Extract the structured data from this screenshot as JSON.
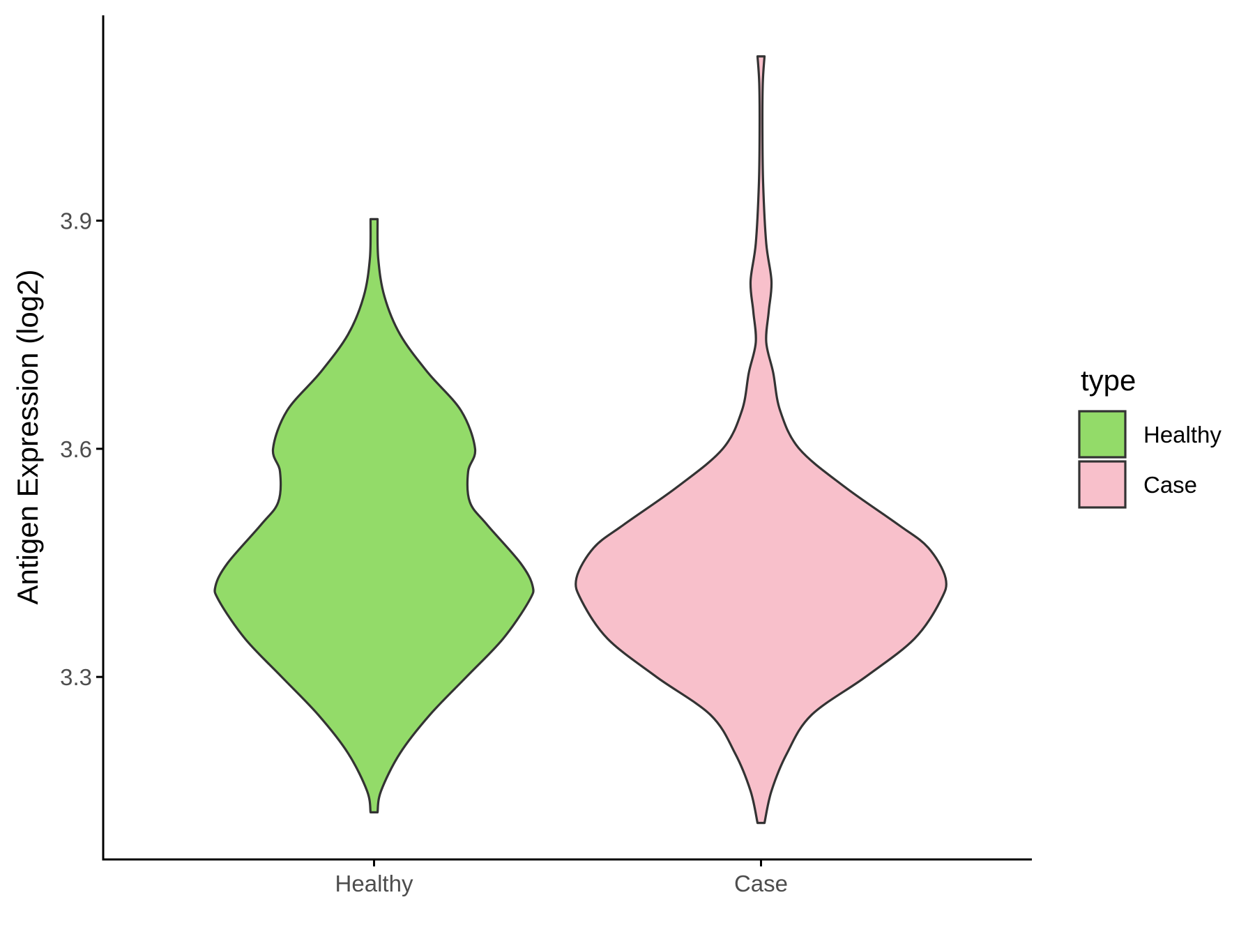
{
  "chart_data": {
    "type": "violin",
    "ylabel": "Antigen Expression (log2)",
    "xlabel": "",
    "categories": [
      "Healthy",
      "Case"
    ],
    "ylim": [
      3.06,
      4.17
    ],
    "yticks": [
      3.3,
      3.6,
      3.9
    ],
    "ytick_labels": [
      "3.3",
      "3.6",
      "3.9"
    ],
    "grid": false,
    "legend": {
      "title": "type",
      "position": "right",
      "entries": [
        {
          "label": "Healthy",
          "color": "#93DB69"
        },
        {
          "label": "Case",
          "color": "#F8C0CB"
        }
      ]
    },
    "series": [
      {
        "category": "Healthy",
        "color": "#93DB69",
        "min": 3.122,
        "max": 3.902,
        "density_profile": [
          {
            "y": 3.122,
            "half_width": 0.01
          },
          {
            "y": 3.15,
            "half_width": 0.02
          },
          {
            "y": 3.2,
            "half_width": 0.075
          },
          {
            "y": 3.25,
            "half_width": 0.16
          },
          {
            "y": 3.3,
            "half_width": 0.265
          },
          {
            "y": 3.35,
            "half_width": 0.37
          },
          {
            "y": 3.4,
            "half_width": 0.445
          },
          {
            "y": 3.42,
            "half_width": 0.455
          },
          {
            "y": 3.45,
            "half_width": 0.42
          },
          {
            "y": 3.5,
            "half_width": 0.325
          },
          {
            "y": 3.53,
            "half_width": 0.275
          },
          {
            "y": 3.57,
            "half_width": 0.27
          },
          {
            "y": 3.6,
            "half_width": 0.29
          },
          {
            "y": 3.65,
            "half_width": 0.25
          },
          {
            "y": 3.7,
            "half_width": 0.155
          },
          {
            "y": 3.75,
            "half_width": 0.075
          },
          {
            "y": 3.8,
            "half_width": 0.03
          },
          {
            "y": 3.85,
            "half_width": 0.012
          },
          {
            "y": 3.902,
            "half_width": 0.01
          }
        ]
      },
      {
        "category": "Case",
        "color": "#F8C0CB",
        "min": 3.108,
        "max": 4.116,
        "density_profile": [
          {
            "y": 3.108,
            "half_width": 0.01
          },
          {
            "y": 3.15,
            "half_width": 0.03
          },
          {
            "y": 3.2,
            "half_width": 0.075
          },
          {
            "y": 3.25,
            "half_width": 0.145
          },
          {
            "y": 3.3,
            "half_width": 0.3
          },
          {
            "y": 3.35,
            "half_width": 0.44
          },
          {
            "y": 3.4,
            "half_width": 0.515
          },
          {
            "y": 3.43,
            "half_width": 0.53
          },
          {
            "y": 3.47,
            "half_width": 0.48
          },
          {
            "y": 3.5,
            "half_width": 0.395
          },
          {
            "y": 3.55,
            "half_width": 0.24
          },
          {
            "y": 3.6,
            "half_width": 0.11
          },
          {
            "y": 3.65,
            "half_width": 0.055
          },
          {
            "y": 3.7,
            "half_width": 0.035
          },
          {
            "y": 3.74,
            "half_width": 0.015
          },
          {
            "y": 3.78,
            "half_width": 0.022
          },
          {
            "y": 3.82,
            "half_width": 0.03
          },
          {
            "y": 3.87,
            "half_width": 0.015
          },
          {
            "y": 3.95,
            "half_width": 0.006
          },
          {
            "y": 4.02,
            "half_width": 0.004
          },
          {
            "y": 4.08,
            "half_width": 0.005
          },
          {
            "y": 4.116,
            "half_width": 0.01
          }
        ]
      }
    ]
  }
}
